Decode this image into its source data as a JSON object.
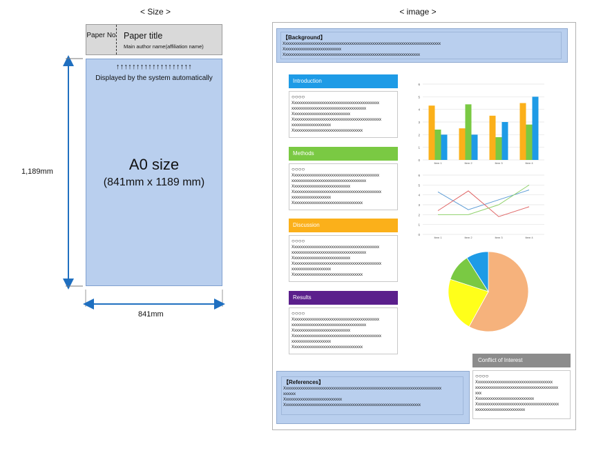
{
  "left": {
    "header": "< Size >",
    "paper_no": "Paper No",
    "paper_title": "Paper title",
    "paper_author": "Main author name(affiliation name)",
    "arrows": "↑↑↑↑↑↑↑↑↑↑↑↑↑↑↑↑↑↑↑",
    "auto_text": "Displayed by the system automatically",
    "a0_main": "A0 size",
    "a0_sub": "(841mm x 1189 mm)",
    "height_label": "1,189mm",
    "width_label": "841mm"
  },
  "right": {
    "header": "< image >",
    "background": {
      "title": "【Background】",
      "lines": [
        "Xxxxxxxxxxxxxxxxxxxxxxxxxxxxxxxxxxxxxxxxxxxxxxxxxxxxxxxxxxxxxxxxxxxxxxxxxxxx",
        "Xxxxxxxxxxxxxxxxxxxxxxxxxxxx",
        "Xxxxxxxxxxxxxxxxxxxxxxxxxxxxxxxxxxxxxxxxxxxxxxxxxxxxxxxxxxxxxxxxxx"
      ]
    },
    "sections": [
      {
        "label": "Introduction",
        "color": "#1e9be6"
      },
      {
        "label": "Methods",
        "color": "#7ac943"
      },
      {
        "label": "Discussion",
        "color": "#fbb01a"
      },
      {
        "label": "Results",
        "color": "#5b1f8c"
      }
    ],
    "section_body": {
      "circles": "○○○○",
      "lines": [
        "Xxxxxxxxxxxxxxxxxxxxxxxxxxxxxxxxxxxxxxxxxx",
        "xxxxxxxxxxxxxxxxxxxxxxxxxxxxxxxxxxxx",
        "Xxxxxxxxxxxxxxxxxxxxxxxxxxxx",
        "Xxxxxxxxxxxxxxxxxxxxxxxxxxxxxxxxxxxxxxxxxxx",
        "xxxxxxxxxxxxxxxxxxx",
        "Xxxxxxxxxxxxxxxxxxxxxxxxxxxxxxxxxx"
      ]
    },
    "references": {
      "title": "【References】",
      "lines": [
        "Xxxxxxxxxxxxxxxxxxxxxxxxxxxxxxxxxxxxxxxxxxxxxxxxxxxxxxxxxxxxxxxxxxxxxxxxxxxx",
        "xxxxxx",
        "Xxxxxxxxxxxxxxxxxxxxxxxxxxxx",
        "Xxxxxxxxxxxxxxxxxxxxxxxxxxxxxxxxxxxxxxxxxxxxxxxxxxxxxxxxxxxxxxxxxx"
      ]
    },
    "coi": {
      "title": "Conflict of Interest",
      "circles": "○○○○",
      "lines": [
        "Xxxxxxxxxxxxxxxxxxxxxxxxxxxxxxxxxxxxx",
        "xxxxxxxxxxxxxxxxxxxxxxxxxxxxxxxxxxxxxxxx",
        "xxx",
        "Xxxxxxxxxxxxxxxxxxxxxxxxxxxx",
        "Xxxxxxxxxxxxxxxxxxxxxxxxxxxxxxxxxxxxxxxx",
        "xxxxxxxxxxxxxxxxxxxxxxxx"
      ]
    }
  },
  "chart_data": [
    {
      "type": "bar",
      "categories": [
        "Item 1",
        "Item 2",
        "Item 3",
        "Item 4"
      ],
      "ylim": [
        0,
        6
      ],
      "yticks": [
        "0",
        "1",
        "2",
        "3",
        "4",
        "5",
        "6"
      ],
      "series": [
        {
          "values": [
            4.3,
            2.5,
            3.5,
            4.5
          ],
          "color": "#fbb01a"
        },
        {
          "values": [
            2.4,
            4.4,
            1.8,
            2.8
          ],
          "color": "#7ac943"
        },
        {
          "values": [
            2.0,
            2.0,
            3.0,
            5.0
          ],
          "color": "#1e9be6"
        }
      ]
    },
    {
      "type": "line",
      "categories": [
        "Item 1",
        "Item 2",
        "Item 3",
        "Item 4"
      ],
      "ylim": [
        0,
        6
      ],
      "yticks": [
        "0",
        "1",
        "2",
        "3",
        "4",
        "5",
        "6"
      ],
      "series": [
        {
          "values": [
            4.3,
            2.5,
            3.5,
            4.5
          ],
          "color": "#5b9bd5"
        },
        {
          "values": [
            2.4,
            4.4,
            1.8,
            2.8
          ],
          "color": "#e06666"
        },
        {
          "values": [
            2.0,
            2.0,
            3.0,
            5.0
          ],
          "color": "#8fd16a"
        }
      ]
    },
    {
      "type": "pie",
      "slices": [
        {
          "value": 58,
          "color": "#f6b27c"
        },
        {
          "value": 22,
          "color": "#ffff1a"
        },
        {
          "value": 11,
          "color": "#7ac943"
        },
        {
          "value": 9,
          "color": "#1e9be6"
        }
      ]
    }
  ]
}
